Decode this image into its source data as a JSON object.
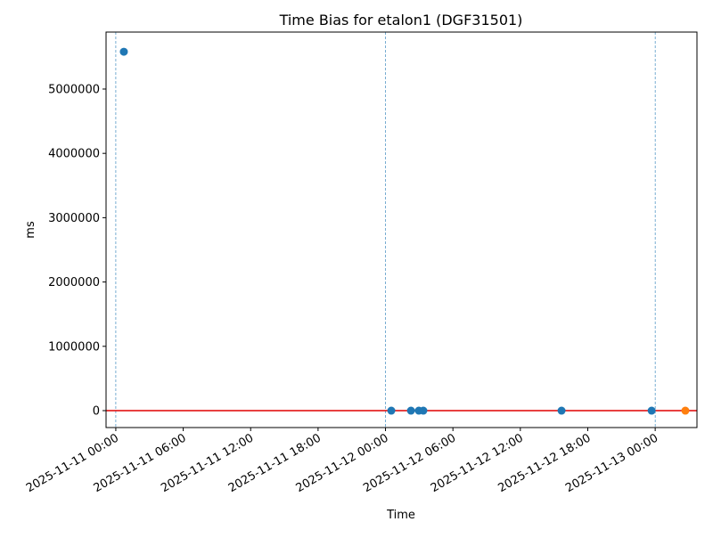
{
  "chart_data": {
    "type": "scatter",
    "title": "Time Bias for etalon1 (DGF31501)",
    "x_label": "Time",
    "y_label": "ms",
    "series": [
      {
        "color": "#1f77b4",
        "x": [
          "2025-11-11 00:43",
          "2025-11-12 00:31",
          "2025-11-12 02:16",
          "2025-11-12 02:58",
          "2025-11-12 03:22",
          "2025-11-12 15:40",
          "2025-11-12 23:41"
        ],
        "values": [
          5580000,
          0,
          0,
          0,
          0,
          0,
          0
        ]
      },
      {
        "color": "#ff7f0e",
        "x": [
          "2025-11-13 02:41"
        ],
        "values": [
          0
        ]
      }
    ],
    "vlines": [
      "2025-11-11 00:00",
      "2025-11-12 00:00",
      "2025-11-13 00:00"
    ],
    "vline_color": "#1f77b4",
    "hline": 0,
    "hline_color": "#e00000",
    "xlim": [
      "2025-11-10 23:08",
      "2025-11-13 03:43"
    ],
    "xticks": [
      "2025-11-11 00:00",
      "2025-11-11 06:00",
      "2025-11-11 12:00",
      "2025-11-11 18:00",
      "2025-11-12 00:00",
      "2025-11-12 06:00",
      "2025-11-12 12:00",
      "2025-11-12 18:00",
      "2025-11-13 00:00"
    ],
    "ylim": [
      -263000,
      5886000
    ],
    "yticks": [
      0,
      1000000,
      2000000,
      3000000,
      4000000,
      5000000
    ]
  }
}
